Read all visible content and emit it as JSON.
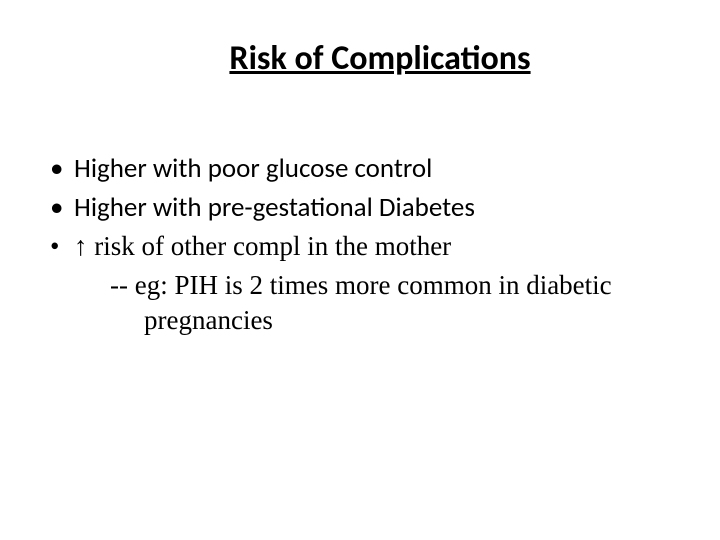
{
  "slide": {
    "title": "Risk of Complications",
    "bullets": [
      {
        "text": "Higher  with poor glucose control",
        "font": "calibri"
      },
      {
        "text": "Higher  with pre-gestational Diabetes",
        "font": "calibri"
      },
      {
        "text": "↑  risk of other compl in the mother",
        "font": "serif"
      }
    ],
    "subline": "-- eg:  PIH is 2 times more common  in diabetic pregnancies"
  },
  "style": {
    "background_color": "#ffffff",
    "text_color": "#000000",
    "title_fontsize": 34,
    "body_fontsize": 27,
    "title_underline": true,
    "title_bold": true
  }
}
